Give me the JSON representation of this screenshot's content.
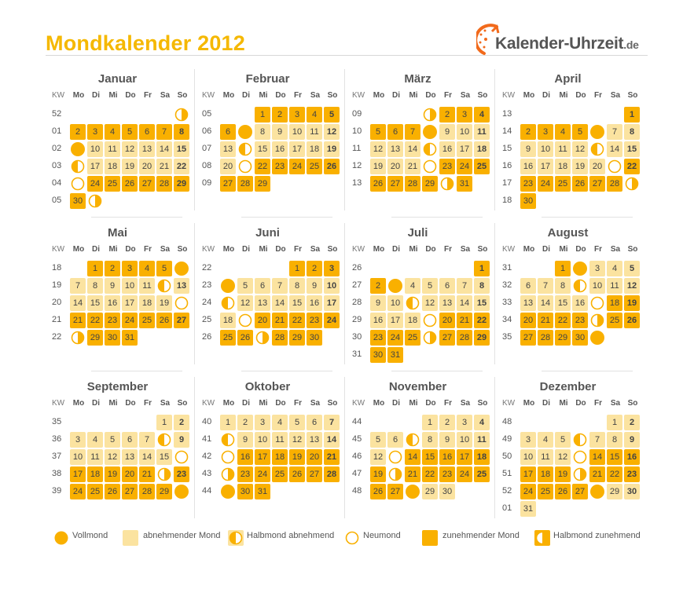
{
  "title": "Mondkalender 2012",
  "logo": {
    "text": "Kalender-Uhrzeit",
    "suffix": ".de",
    "icon": "clock-icon"
  },
  "colors": {
    "waxing": "#f9b000",
    "waning": "#fbe3a0",
    "moon": "#f9b000",
    "title": "#f5b800"
  },
  "weekday_header": [
    "KW",
    "Mo",
    "Di",
    "Mi",
    "Do",
    "Fr",
    "Sa",
    "So"
  ],
  "months": [
    {
      "name": "Januar",
      "first_dow": 6,
      "days": 31,
      "weeks": [
        "52",
        "01",
        "02",
        "03",
        "04",
        "05"
      ],
      "waxing": [
        [
          1,
          1
        ],
        [
          2,
          8
        ],
        [
          24,
          30
        ]
      ],
      "moons": {
        "1": "waxing-half-left",
        "9": "full",
        "16": "half-waning",
        "23": "new",
        "31": "half-waxing"
      }
    },
    {
      "name": "Februar",
      "first_dow": 2,
      "days": 29,
      "weeks": [
        "05",
        "06",
        "07",
        "08",
        "09"
      ],
      "waxing": [
        [
          1,
          6
        ],
        [
          22,
          29
        ]
      ],
      "moons": {
        "7": "full",
        "14": "half-waning",
        "21": "new"
      }
    },
    {
      "name": "März",
      "first_dow": 3,
      "days": 31,
      "weeks": [
        "09",
        "10",
        "11",
        "12",
        "13"
      ],
      "waxing": [
        [
          1,
          7
        ],
        [
          23,
          31
        ]
      ],
      "moons": {
        "1": "half-waxing",
        "8": "full",
        "15": "half-waning",
        "22": "new",
        "30": "half-waxing"
      }
    },
    {
      "name": "April",
      "first_dow": 6,
      "days": 30,
      "weeks": [
        "13",
        "14",
        "15",
        "16",
        "17",
        "18"
      ],
      "waxing": [
        [
          1,
          5
        ],
        [
          22,
          30
        ]
      ],
      "moons": {
        "6": "full",
        "13": "half-waning",
        "21": "new",
        "29": "half-waxing"
      }
    },
    {
      "name": "Mai",
      "first_dow": 1,
      "days": 31,
      "weeks": [
        "18",
        "19",
        "20",
        "21",
        "22"
      ],
      "waxing": [
        [
          1,
          5
        ],
        [
          21,
          31
        ]
      ],
      "moons": {
        "6": "full",
        "12": "half-waning",
        "20": "new",
        "28": "half-waxing"
      }
    },
    {
      "name": "Juni",
      "first_dow": 4,
      "days": 30,
      "weeks": [
        "22",
        "23",
        "24",
        "25",
        "26"
      ],
      "waxing": [
        [
          1,
          3
        ],
        [
          20,
          30
        ]
      ],
      "moons": {
        "4": "full",
        "11": "half-waning",
        "19": "new",
        "27": "half-waxing"
      }
    },
    {
      "name": "Juli",
      "first_dow": 6,
      "days": 31,
      "weeks": [
        "26",
        "27",
        "28",
        "29",
        "30",
        "31"
      ],
      "waxing": [
        [
          1,
          2
        ],
        [
          19,
          31
        ]
      ],
      "moons": {
        "3": "full",
        "11": "half-waning",
        "19": "new",
        "26": "half-waxing"
      }
    },
    {
      "name": "August",
      "first_dow": 2,
      "days": 31,
      "weeks": [
        "31",
        "32",
        "33",
        "34",
        "35"
      ],
      "waxing": [
        [
          1,
          1
        ],
        [
          18,
          31
        ]
      ],
      "moons": {
        "2": "full",
        "9": "half-waning",
        "17": "new",
        "24": "half-waxing",
        "31": "full"
      }
    },
    {
      "name": "September",
      "first_dow": 5,
      "days": 30,
      "weeks": [
        "35",
        "36",
        "37",
        "38",
        "39"
      ],
      "waxing": [
        [
          16,
          30
        ]
      ],
      "moons": {
        "8": "half-waning",
        "16": "new",
        "22": "half-waxing",
        "30": "full"
      }
    },
    {
      "name": "Oktober",
      "first_dow": 0,
      "days": 31,
      "weeks": [
        "40",
        "41",
        "42",
        "43",
        "44"
      ],
      "waxing": [
        [
          16,
          31
        ]
      ],
      "moons": {
        "8": "half-waning",
        "15": "new",
        "22": "half-waxing",
        "29": "full"
      }
    },
    {
      "name": "November",
      "first_dow": 3,
      "days": 30,
      "weeks": [
        "44",
        "45",
        "46",
        "47",
        "48"
      ],
      "waxing": [
        [
          14,
          28
        ]
      ],
      "moons": {
        "7": "half-waning",
        "13": "new",
        "20": "half-waxing",
        "28": "full"
      }
    },
    {
      "name": "Dezember",
      "first_dow": 5,
      "days": 31,
      "weeks": [
        "48",
        "49",
        "50",
        "51",
        "52",
        "01"
      ],
      "waxing": [
        [
          14,
          27
        ]
      ],
      "moons": {
        "6": "half-waning",
        "13": "new",
        "20": "half-waxing",
        "28": "full"
      }
    }
  ],
  "legend": [
    {
      "type": "full",
      "label": "Vollmond"
    },
    {
      "type": "waning-box",
      "label": "abnehmender Mond"
    },
    {
      "type": "half-waning",
      "label": "Halbmond abnehmend"
    },
    {
      "type": "new",
      "label": "Neumond"
    },
    {
      "type": "waxing-box",
      "label": "zunehmender Mond"
    },
    {
      "type": "half-waxing",
      "label": "Halbmond zunehmend"
    }
  ]
}
